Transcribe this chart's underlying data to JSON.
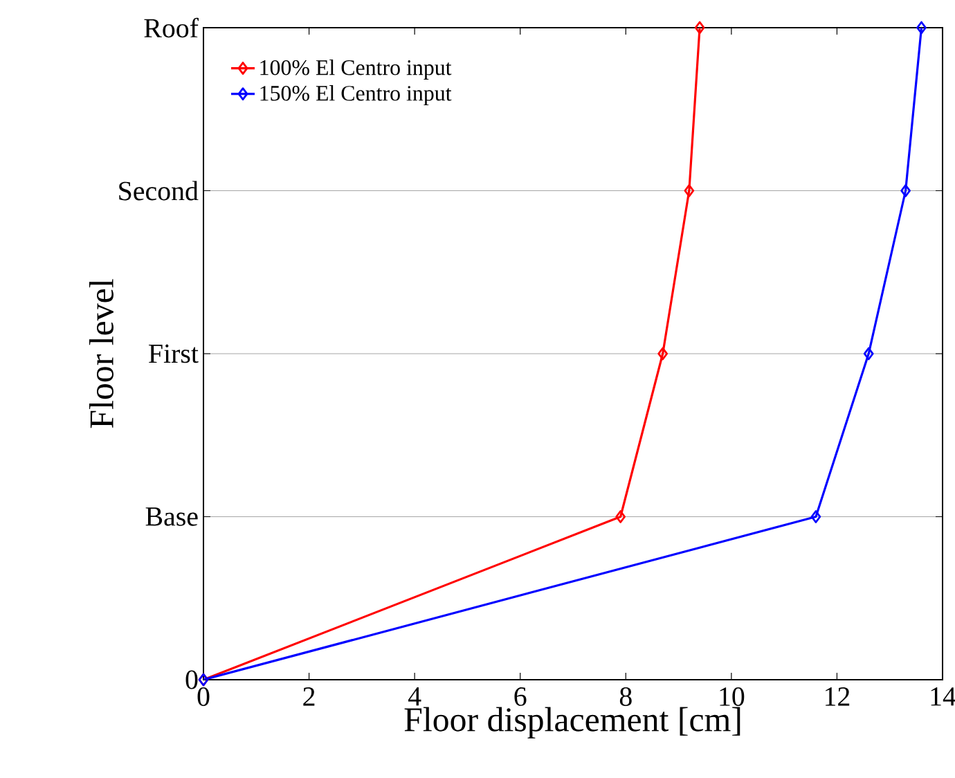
{
  "chart_data": {
    "type": "line",
    "orientation": "horizontal",
    "xlabel": "Floor displacement [cm]",
    "ylabel": "Floor level",
    "categories": [
      "Roof",
      "Second",
      "First",
      "Base",
      "0"
    ],
    "xlim": [
      0,
      14
    ],
    "xticks": [
      0,
      2,
      4,
      6,
      8,
      10,
      12,
      14
    ],
    "grid": "y",
    "legend": "top left",
    "marker": "diamond",
    "line_style": "solid",
    "series": [
      {
        "name": "100% El Centro input",
        "color": "#ff0000",
        "values": [
          9.4,
          9.2,
          8.7,
          7.9,
          0
        ]
      },
      {
        "name": "150% El Centro input",
        "color": "#0000ff",
        "values": [
          13.6,
          13.3,
          12.6,
          11.6,
          0
        ]
      }
    ]
  }
}
